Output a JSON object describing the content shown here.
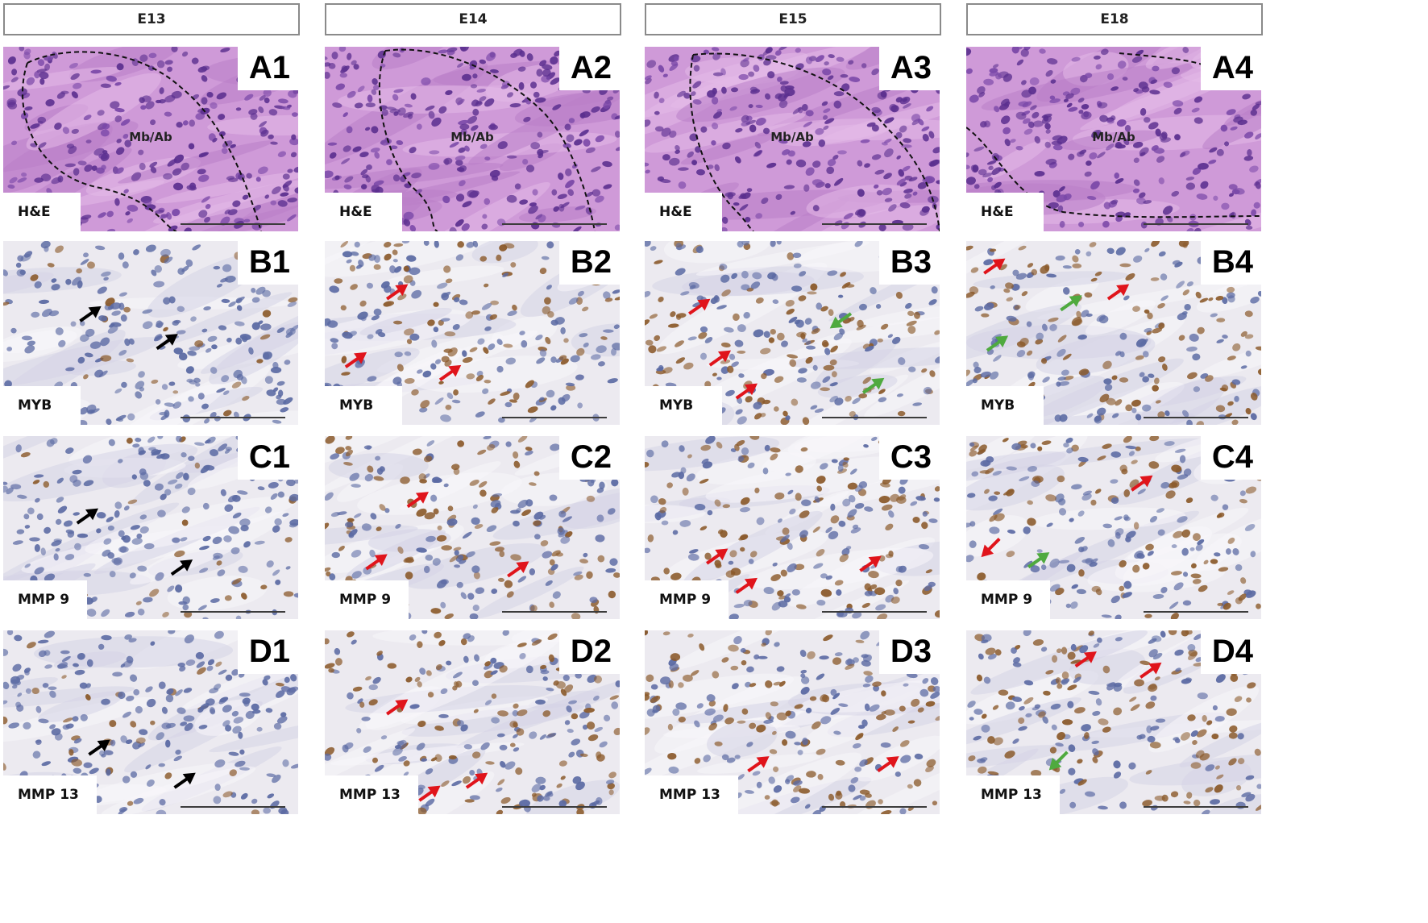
{
  "stages": [
    "E13",
    "E14",
    "E15",
    "E18"
  ],
  "rows": [
    {
      "stain": "H&E",
      "ids": [
        "A1",
        "A2",
        "A3",
        "A4"
      ],
      "region": "Mb/Ab"
    },
    {
      "stain": "MYB",
      "ids": [
        "B1",
        "B2",
        "B3",
        "B4"
      ]
    },
    {
      "stain": "MMP 9",
      "ids": [
        "C1",
        "C2",
        "C3",
        "C4"
      ]
    },
    {
      "stain": "MMP 13",
      "ids": [
        "D1",
        "D2",
        "D3",
        "D4"
      ]
    }
  ],
  "colors": {
    "he_background": "#cf9ad8",
    "he_nuclei": "#5b2f8f",
    "ihc_background": "#eceaf0",
    "ihc_nuclei_blue": "#5b6aa3",
    "ihc_nuclei_brown": "#8b5a2b",
    "arrow_black": "#000000",
    "arrow_red": "#e0141b",
    "arrow_green": "#4faa3f"
  },
  "arrows": {
    "B1": [
      "black",
      "black"
    ],
    "B2": [
      "red",
      "red",
      "red"
    ],
    "B3": [
      "red",
      "red",
      "red",
      "green",
      "green"
    ],
    "B4": [
      "red",
      "red",
      "green",
      "green"
    ],
    "C1": [
      "black",
      "black"
    ],
    "C2": [
      "red",
      "red",
      "red"
    ],
    "C3": [
      "red",
      "red",
      "red"
    ],
    "C4": [
      "red",
      "red",
      "green"
    ],
    "D1": [
      "black",
      "black"
    ],
    "D2": [
      "red",
      "red",
      "red"
    ],
    "D3": [
      "red",
      "red"
    ],
    "D4": [
      "red",
      "red",
      "green"
    ]
  }
}
